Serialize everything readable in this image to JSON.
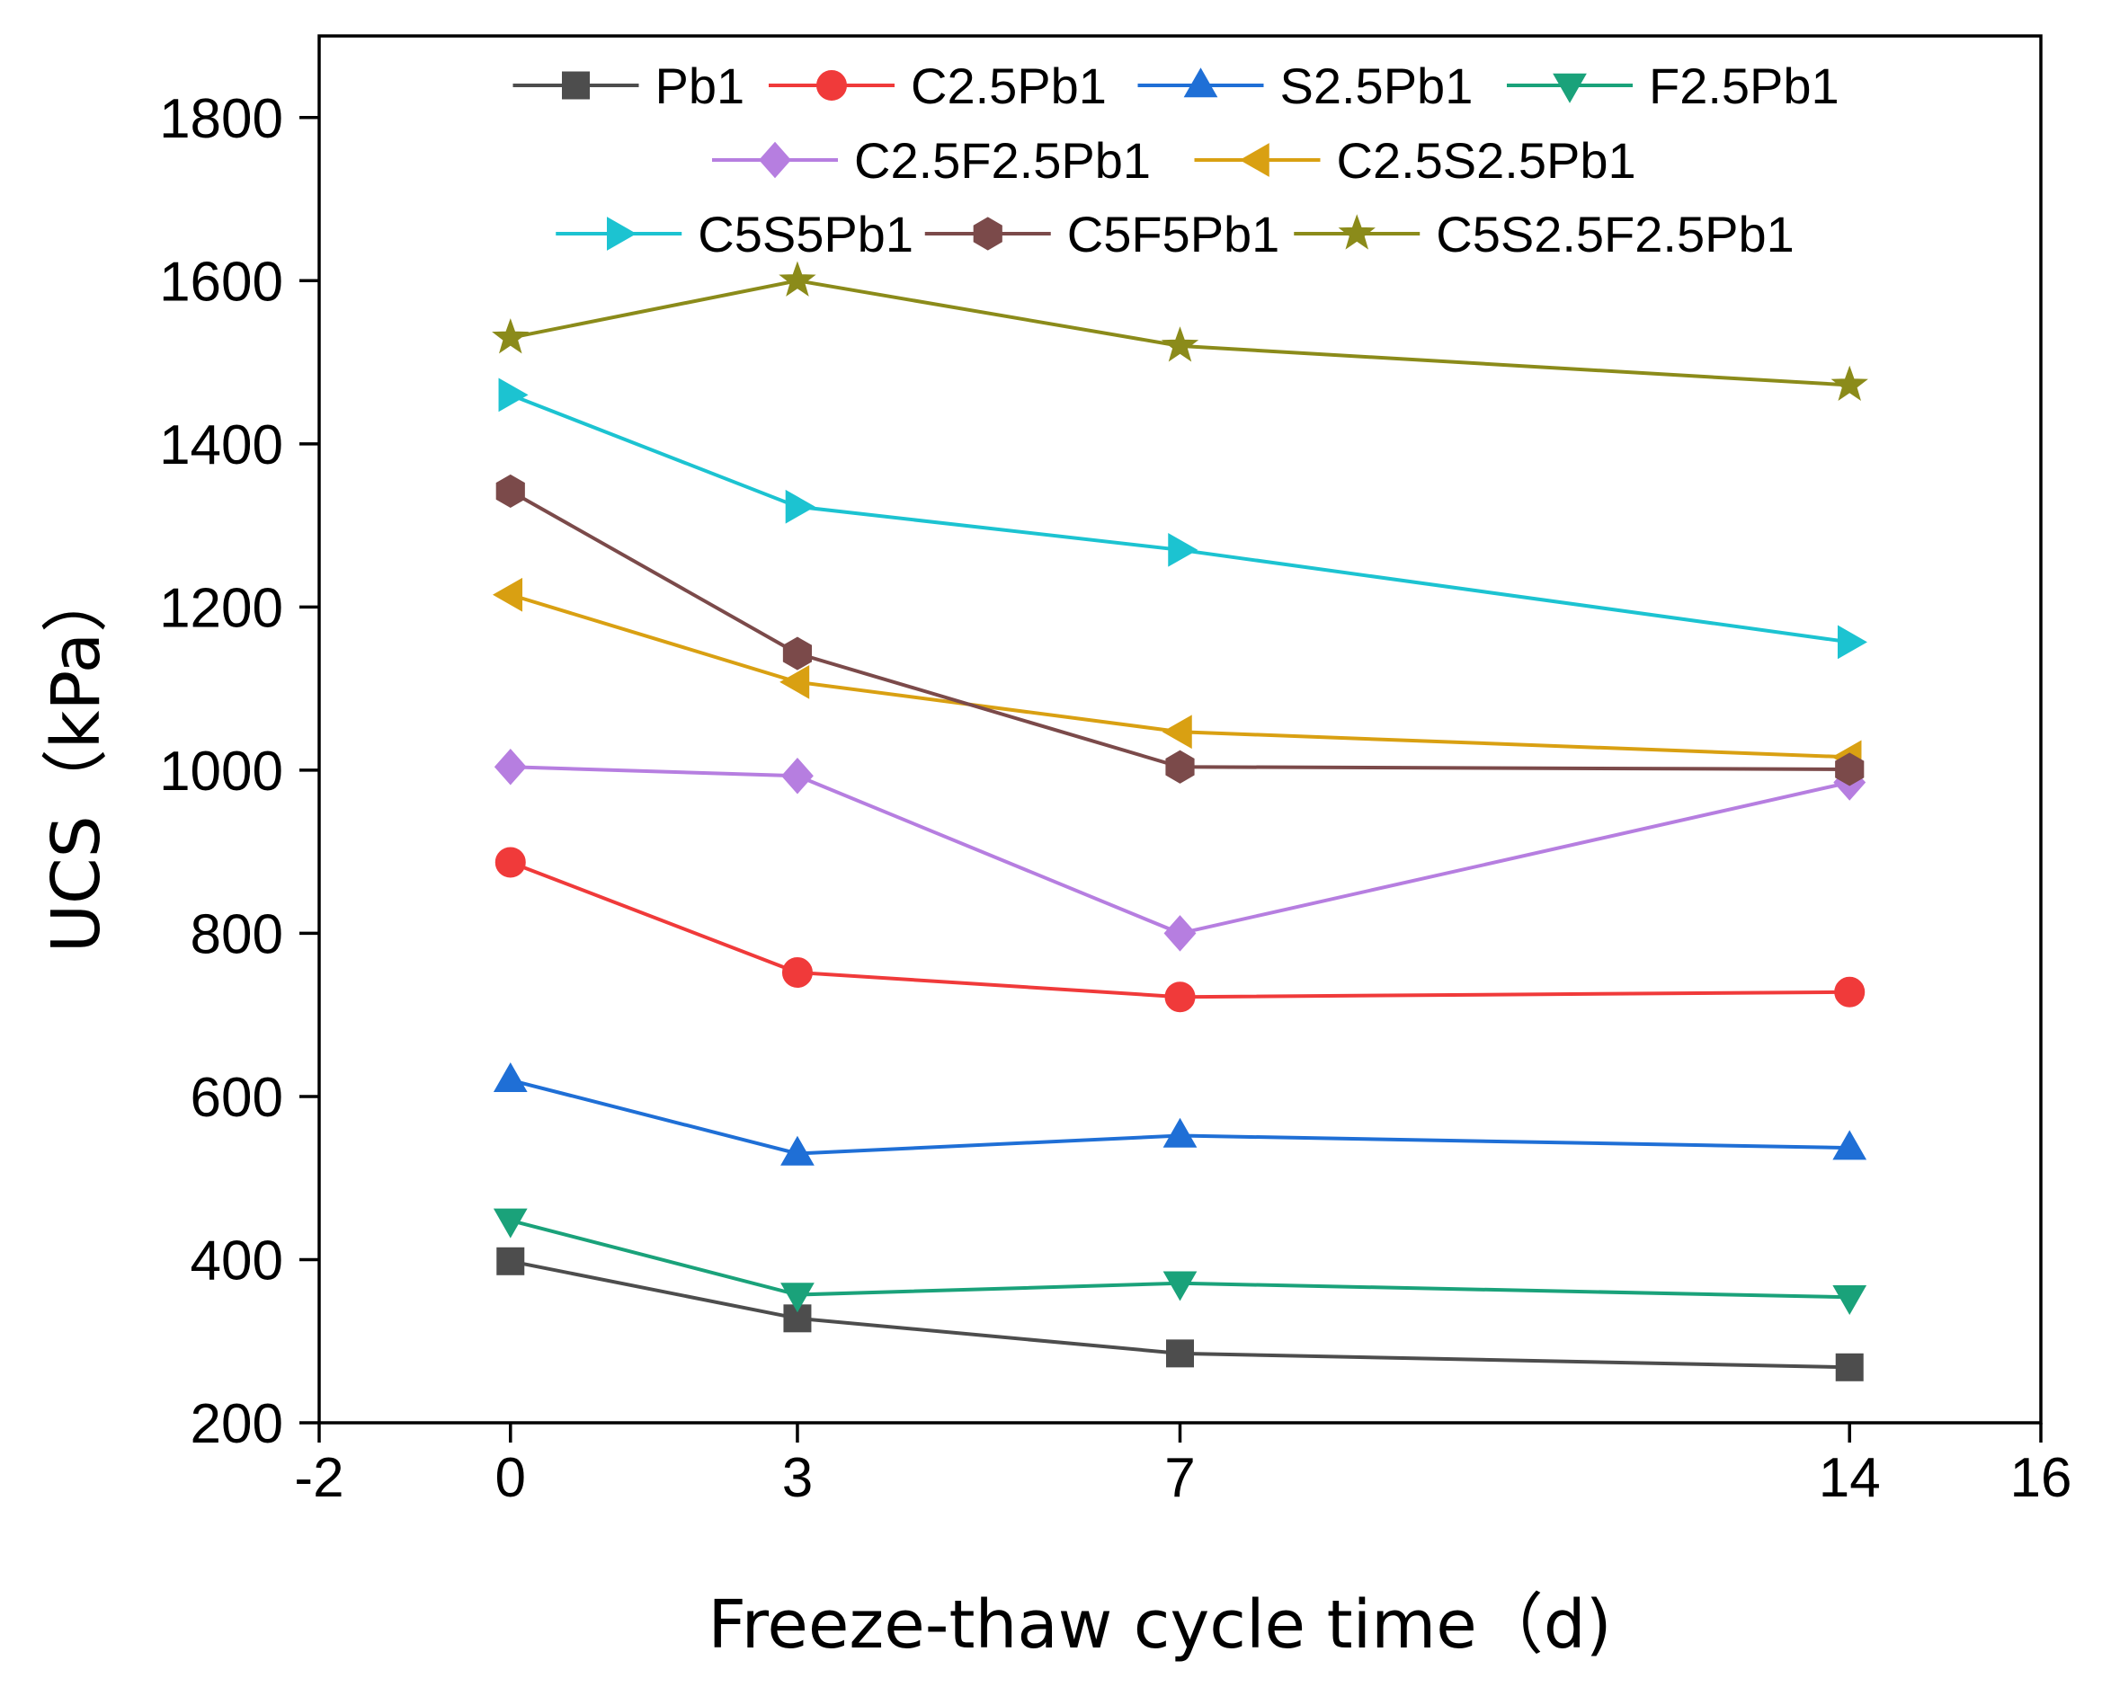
{
  "chart_data": {
    "type": "line",
    "title": "",
    "xlabel": "Freeze-thaw cycle time（d)",
    "ylabel": "UCS（kPa）",
    "xlim": [
      -2,
      16
    ],
    "ylim": [
      200,
      1900
    ],
    "xticks": [
      -2,
      0,
      3,
      7,
      14,
      16
    ],
    "yticks": [
      200,
      400,
      600,
      800,
      1000,
      1200,
      1400,
      1600,
      1800
    ],
    "x": [
      0,
      3,
      7,
      14
    ],
    "legend_position": "top",
    "grid": false,
    "series": [
      {
        "name": "Pb1",
        "color": "#4d4d4d",
        "marker": "square",
        "values": [
          398,
          328,
          285,
          268
        ]
      },
      {
        "name": "C2.5Pb1",
        "color": "#f03a3a",
        "marker": "circle",
        "values": [
          887,
          752,
          722,
          728
        ]
      },
      {
        "name": "S2.5Pb1",
        "color": "#1f6fd6",
        "marker": "triangle-up",
        "values": [
          620,
          530,
          552,
          537
        ]
      },
      {
        "name": "F2.5Pb1",
        "color": "#1aa27a",
        "marker": "triangle-down",
        "values": [
          448,
          357,
          371,
          354
        ]
      },
      {
        "name": "C2.5F2.5Pb1",
        "color": "#b67ee0",
        "marker": "diamond",
        "values": [
          1004,
          993,
          800,
          985
        ]
      },
      {
        "name": "C2.5S2.5Pb1",
        "color": "#d9a012",
        "marker": "triangle-left",
        "values": [
          1215,
          1108,
          1047,
          1016
        ]
      },
      {
        "name": "C5S5Pb1",
        "color": "#1cc3d1",
        "marker": "triangle-right",
        "values": [
          1460,
          1323,
          1270,
          1157
        ]
      },
      {
        "name": "C5F5Pb1",
        "color": "#7b4a4a",
        "marker": "hexagon",
        "values": [
          1342,
          1143,
          1004,
          1001
        ]
      },
      {
        "name": "C5S2.5F2.5Pb1",
        "color": "#8b8b1a",
        "marker": "star",
        "values": [
          1530,
          1600,
          1520,
          1472
        ]
      }
    ]
  }
}
